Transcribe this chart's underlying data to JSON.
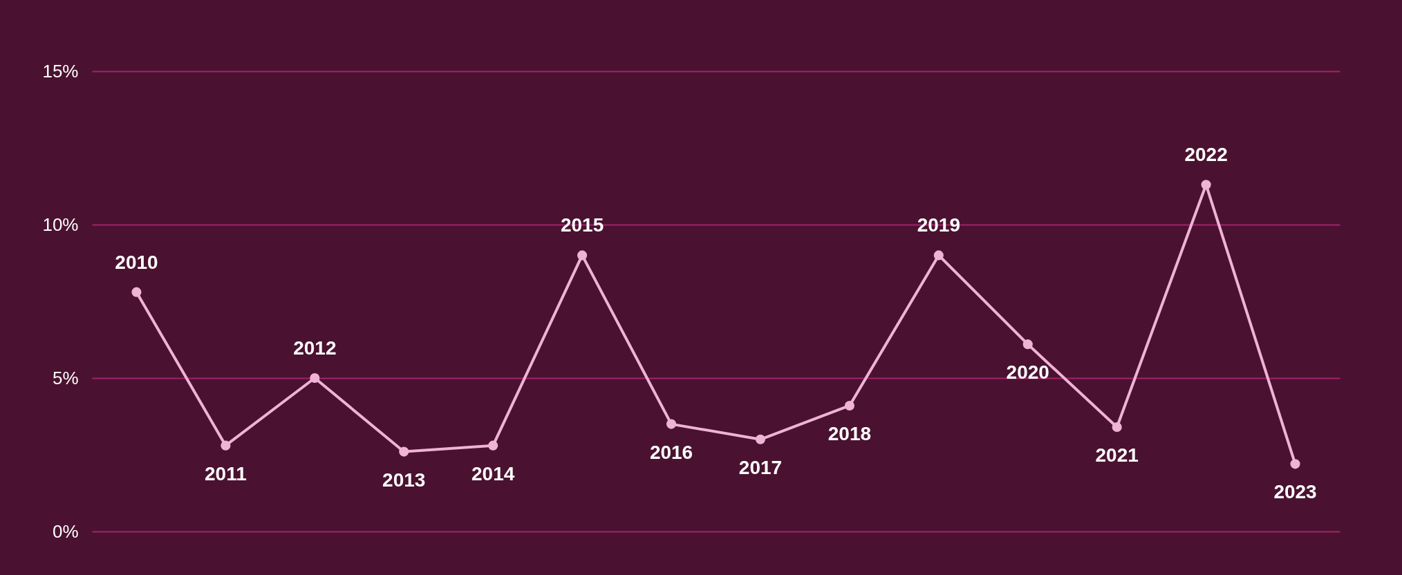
{
  "chart_data": {
    "type": "line",
    "categories": [
      "2010",
      "2011",
      "2012",
      "2013",
      "2014",
      "2015",
      "2016",
      "2017",
      "2018",
      "2019",
      "2020",
      "2021",
      "2022",
      "2023"
    ],
    "series": [
      {
        "color": "#f0b3d6",
        "values": [
          7.8,
          2.8,
          5.0,
          2.6,
          2.8,
          9.0,
          3.5,
          3.0,
          4.1,
          9.0,
          6.1,
          3.4,
          11.3,
          2.2
        ]
      }
    ],
    "ylim": [
      0,
      15
    ],
    "yticks": [
      {
        "value": 0,
        "label": "0%"
      },
      {
        "value": 5,
        "label": "5%"
      },
      {
        "value": 10,
        "label": "10%"
      },
      {
        "value": 15,
        "label": "15%"
      }
    ],
    "grid": "y",
    "marker": "circle",
    "line_style": "solid",
    "tick_labels": "y"
  }
}
